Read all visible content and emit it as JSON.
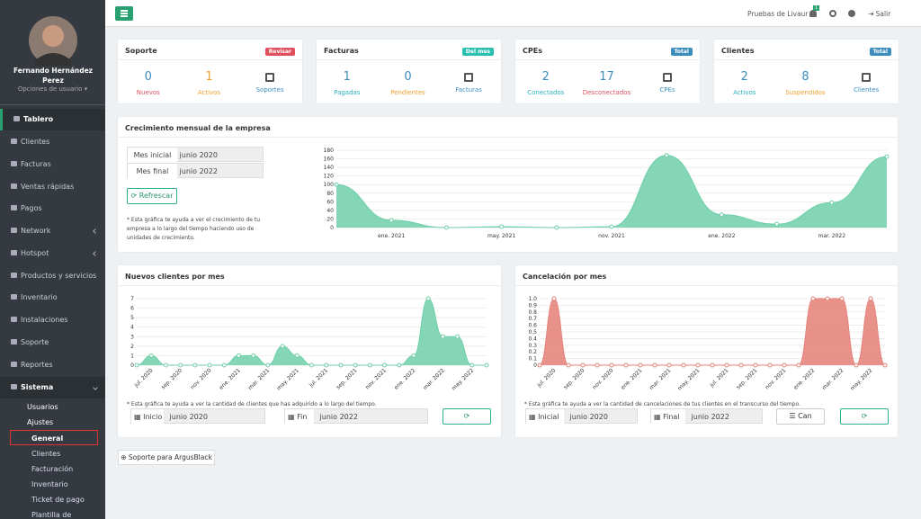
{
  "sidebar": {
    "user_name": "Fernando Hernández Perez",
    "user_options": "Opciones de usuario",
    "menu": [
      "Tablero",
      "Clientes",
      "Facturas",
      "Ventas rápidas",
      "Pagos",
      "Network",
      "Hotspot",
      "Productos y servicios",
      "Inventario",
      "Instalaciones",
      "Soporte",
      "Reportes",
      "Sistema"
    ],
    "submenu": [
      "Usuarios",
      "Ajustes"
    ],
    "settings_menu": [
      "General",
      "Clientes",
      "Facturación",
      "Inventario",
      "Ticket de pago",
      "Plantilla de"
    ]
  },
  "topbar": {
    "company": "Pruebas de Livaur",
    "notifications": 1,
    "logout": "Salir"
  },
  "cards": [
    {
      "title": "Soporte",
      "badge": "Revisar",
      "badge_color": "#e0505e",
      "stats": [
        {
          "value": 0,
          "label": "Nuevos",
          "value_color": "#3c8dbc",
          "label_color": "#e0505e"
        },
        {
          "value": 1,
          "label": "Activos",
          "value_color": "#f0a030",
          "label_color": "#f0a030"
        }
      ],
      "link": "Soportes",
      "link_color": "#3c8dbc"
    },
    {
      "title": "Facturas",
      "badge": "Del mes",
      "badge_color": "#2cc0b0",
      "stats": [
        {
          "value": 1,
          "label": "Pagadas",
          "value_color": "#3c8dbc",
          "label_color": "#2cb0c0"
        },
        {
          "value": 0,
          "label": "Pendientes",
          "value_color": "#3c8dbc",
          "label_color": "#f0a030"
        }
      ],
      "link": "Facturas",
      "link_color": "#3c8dbc"
    },
    {
      "title": "CPEs",
      "badge": "Total",
      "badge_color": "#3c8dbc",
      "stats": [
        {
          "value": 2,
          "label": "Conectados",
          "value_color": "#3c8dbc",
          "label_color": "#2cb0c0"
        },
        {
          "value": 17,
          "label": "Desconectados",
          "value_color": "#3c8dbc",
          "label_color": "#e0505e"
        }
      ],
      "link": "CPEs",
      "link_color": "#3c8dbc"
    },
    {
      "title": "Clientes",
      "badge": "Total",
      "badge_color": "#3c8dbc",
      "stats": [
        {
          "value": 2,
          "label": "Activos",
          "value_color": "#3c8dbc",
          "label_color": "#2cb0c0"
        },
        {
          "value": 8,
          "label": "Suspendidos",
          "value_color": "#3c8dbc",
          "label_color": "#f0a030"
        }
      ],
      "link": "Clientes",
      "link_color": "#3c8dbc"
    }
  ],
  "growth": {
    "title": "Crecimiento mensual de la empresa",
    "filters": [
      {
        "label": "Mes inicial",
        "value": "junio 2020"
      },
      {
        "label": "Mes final",
        "value": "junio 2022"
      }
    ],
    "refresh": "Refrescar",
    "note": "* Esta gráfica te ayuda a ver el crecimiento de tu empresa a lo largo del tiempo haciendo uso de unidades de crecimiento.",
    "chart_data": {
      "type": "area",
      "categories": [
        null,
        "ene. 2021",
        null,
        "may. 2021",
        null,
        "nov. 2021",
        null,
        "ene. 2022",
        null,
        "mar. 2022",
        null
      ],
      "values": [
        100,
        17,
        0,
        2,
        0,
        2,
        168,
        30,
        8,
        58,
        165
      ],
      "color": "#6fcfa9",
      "ylim": [
        0,
        180
      ],
      "yticks": [
        0,
        20,
        40,
        60,
        80,
        100,
        120,
        140,
        160,
        180
      ],
      "grid": true
    }
  },
  "new_clients": {
    "title": "Nuevos clientes por mes",
    "note": "* Esta gráfica te ayuda a ver la cantidad de clientes que has adquirido a lo largo del tiempo.",
    "start_label": "Inicio",
    "start": "junio 2020",
    "end_label": "Fin",
    "end": "junio 2022",
    "chart_data": {
      "type": "area",
      "categories": [
        null,
        "jul. 2020",
        null,
        "sep. 2020",
        null,
        "nov. 2020",
        null,
        "ene. 2021",
        null,
        "mar. 2021",
        null,
        "may. 2021",
        null,
        "jul. 2021",
        null,
        "sep. 2021",
        null,
        "nov. 2021",
        null,
        "ene. 2022",
        null,
        "mar. 2022",
        null,
        "may. 2022",
        null
      ],
      "values": [
        0,
        1,
        0,
        0,
        0,
        0,
        0,
        1,
        1,
        0,
        2,
        1,
        0,
        0,
        0,
        0,
        0,
        0,
        0,
        1,
        7,
        3,
        3,
        0,
        0
      ],
      "color": "#6fcfa9",
      "ylim": [
        0,
        7
      ],
      "yticks": [
        0,
        1,
        2,
        3,
        4,
        5,
        6,
        7
      ],
      "grid": true
    }
  },
  "cancellations": {
    "title": "Cancelación por mes",
    "note": "* Esta gráfica te ayuda a ver la cantidad de cancelaciones de tus clientes en el transcurso del tiempo.",
    "start_label": "Inicial",
    "start": "junio 2020",
    "end_label": "Final",
    "end": "junio 2022",
    "extra_button": "Can",
    "chart_data": {
      "type": "area",
      "categories": [
        null,
        "jul. 2020",
        null,
        "sep. 2020",
        null,
        "nov. 2020",
        null,
        "ene. 2021",
        null,
        "mar. 2021",
        null,
        "may. 2021",
        null,
        "jul. 2021",
        null,
        "sep. 2021",
        null,
        "nov. 2021",
        null,
        "ene. 2022",
        null,
        "mar. 2022",
        null,
        "may. 2022",
        null
      ],
      "values": [
        0,
        1,
        0,
        0,
        0,
        0,
        0,
        0,
        0,
        0,
        0,
        0,
        0,
        0,
        0,
        0,
        0,
        0,
        0,
        1,
        1,
        1,
        0,
        1,
        0
      ],
      "color": "#e57f78",
      "ylim": [
        0,
        1
      ],
      "yticks": [
        0,
        0.1,
        0.2,
        0.3,
        0.4,
        0.5,
        0.6,
        0.7,
        0.8,
        0.9,
        {
          "value": 1,
          "label": "1.0"
        }
      ],
      "grid": true
    }
  },
  "support_button": "Soporte para ArgusBlack"
}
